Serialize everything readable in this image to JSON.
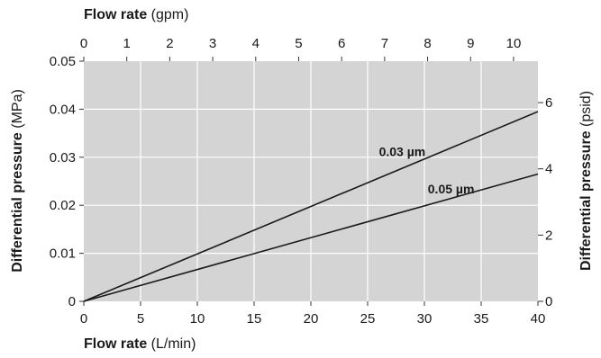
{
  "chart_data": {
    "type": "line",
    "title": "",
    "plot_background": "#d4d4d4",
    "grid": true,
    "grid_color": "#ffffff",
    "line_color": "#1a1a1a",
    "axes": {
      "x_bottom": {
        "label_bold": "Flow rate",
        "label_unit": " (L/min)",
        "range": [
          0,
          40
        ],
        "ticks": [
          0,
          5,
          10,
          15,
          20,
          25,
          30,
          35,
          40
        ],
        "tick_labels": [
          "0",
          "5",
          "10",
          "15",
          "20",
          "25",
          "30",
          "35",
          "40"
        ]
      },
      "x_top": {
        "label_bold": "Flow rate",
        "label_unit": " (gpm)",
        "range": [
          0,
          10.567
        ],
        "ticks": [
          0,
          1,
          2,
          3,
          4,
          5,
          6,
          7,
          8,
          9,
          10
        ],
        "tick_labels": [
          "0",
          "1",
          "2",
          "3",
          "4",
          "5",
          "6",
          "7",
          "8",
          "9",
          "10"
        ]
      },
      "y_left": {
        "label_bold": "Differential pressure",
        "label_unit": " (MPa)",
        "range": [
          0,
          0.05
        ],
        "ticks": [
          0,
          0.01,
          0.02,
          0.03,
          0.04,
          0.05
        ],
        "tick_labels": [
          "0",
          "0.01",
          "0.02",
          "0.03",
          "0.04",
          "0.05"
        ]
      },
      "y_right": {
        "label_bold": "Differential pressure",
        "label_unit": " (psid)",
        "range": [
          0,
          7.252
        ],
        "ticks": [
          0,
          2,
          4,
          6
        ],
        "tick_labels": [
          "0",
          "2",
          "4",
          "6"
        ]
      }
    },
    "series": [
      {
        "name": "0.03 µm",
        "x": [
          0,
          40
        ],
        "y": [
          0,
          0.0395
        ]
      },
      {
        "name": "0.05 µm",
        "x": [
          0,
          40
        ],
        "y": [
          0,
          0.0265
        ]
      }
    ],
    "annotations": [
      {
        "series": "0.03 µm",
        "x": 26,
        "y": 0.0302
      },
      {
        "series": "0.05 µm",
        "x": 30.3,
        "y": 0.0225
      }
    ]
  }
}
